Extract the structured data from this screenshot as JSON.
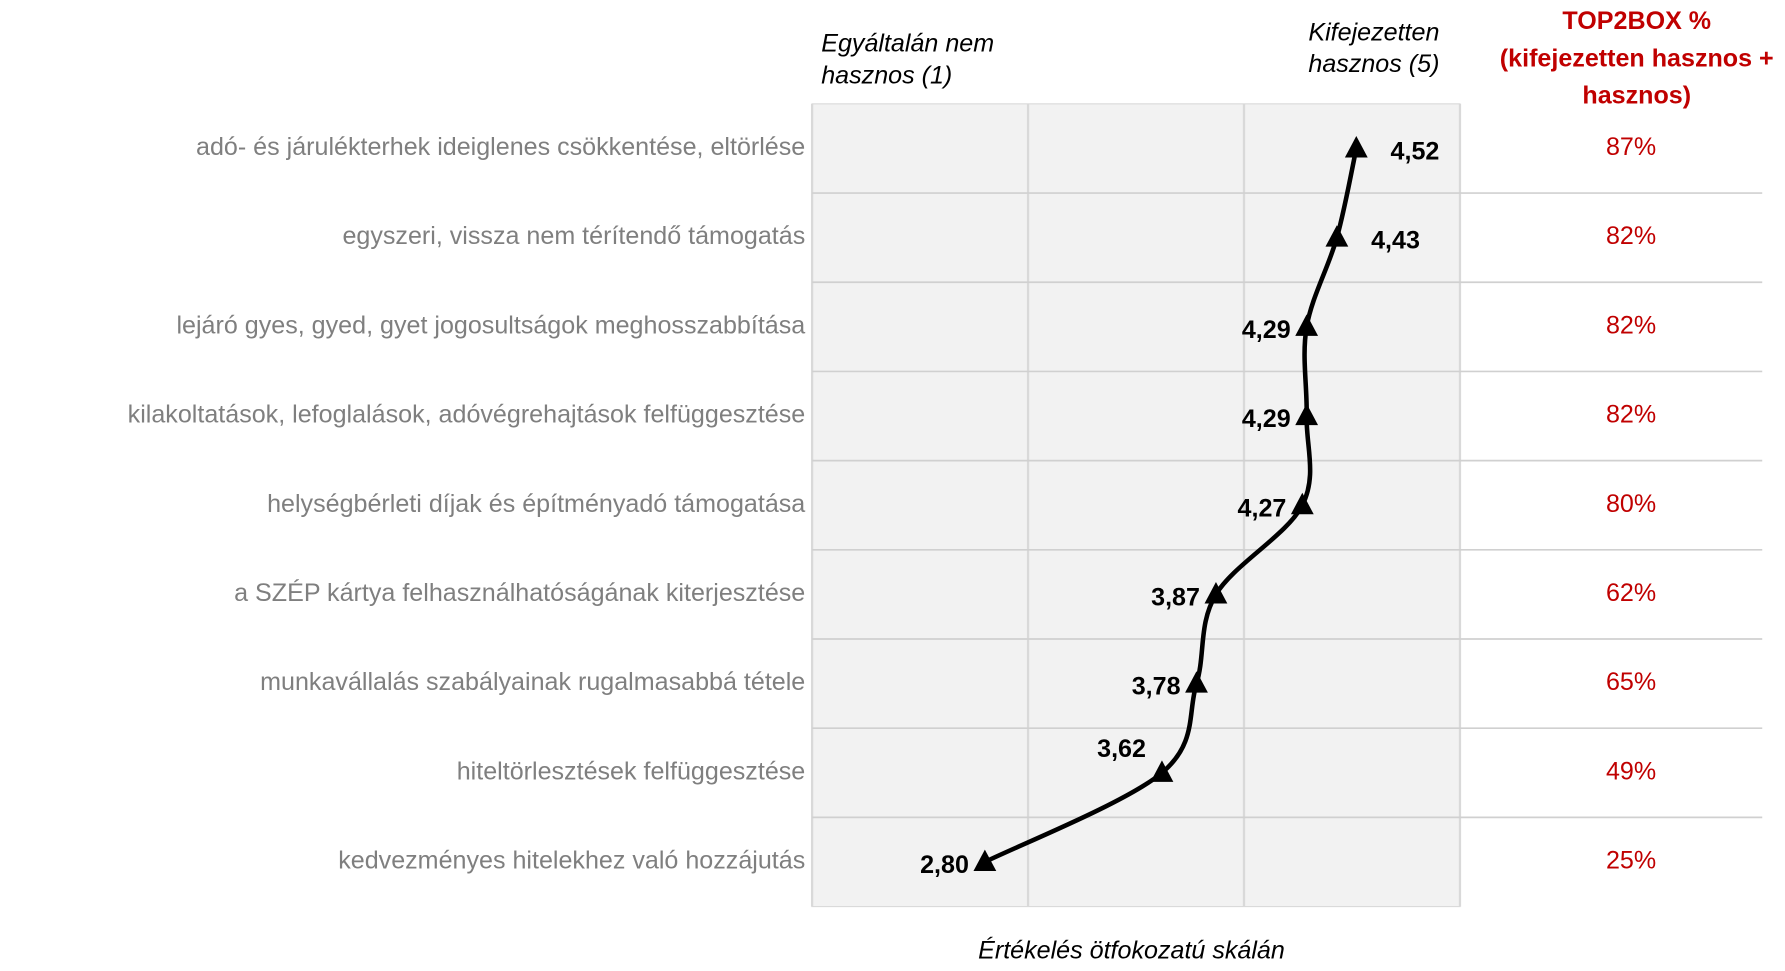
{
  "chart_data": {
    "type": "line",
    "categories": [
      "adó- és járulékterhek ideiglenes csökkentése, eltörlése",
      "egyszeri, vissza nem térítendő támogatás",
      "lejáró gyes, gyed, gyet jogosultságok meghosszabbítása",
      "kilakoltatások, lefoglalások, adóvégrehajtások felfüggesztése",
      "helységbérleti díjak és építményadó támogatása",
      "a SZÉP kártya felhasználhatóságának kiterjesztése",
      "munkavállalás szabályainak rugalmasabbá tétele",
      "hiteltörlesztések felfüggesztése",
      "kedvezményes hitelekhez való hozzájutás"
    ],
    "values": [
      4.52,
      4.43,
      4.29,
      4.29,
      4.27,
      3.87,
      3.78,
      3.62,
      2.8
    ],
    "value_labels": [
      "4,52",
      "4,43",
      "4,29",
      "4,29",
      "4,27",
      "3,87",
      "3,78",
      "3,62",
      "2,80"
    ],
    "color": "#000000",
    "xlim": [
      2,
      5
    ],
    "xticks": [
      2,
      3,
      4,
      5
    ],
    "grid": true,
    "xlabel": "Értékelés ötfokozatú skálán",
    "annotations": {
      "low": [
        "Egyáltalán nem",
        "hasznos (1)"
      ],
      "high": [
        "Kifejezetten",
        "hasznos (5)"
      ]
    },
    "top2box": {
      "header": [
        "TOP2BOX %",
        "(kifejezetten hasznos +",
        "hasznos)"
      ],
      "values": [
        87,
        82,
        82,
        82,
        80,
        62,
        65,
        49,
        25
      ],
      "value_labels": [
        "87%",
        "82%",
        "82%",
        "82%",
        "80%",
        "62%",
        "65%",
        "49%",
        "25%"
      ],
      "color": "#c00000"
    }
  }
}
